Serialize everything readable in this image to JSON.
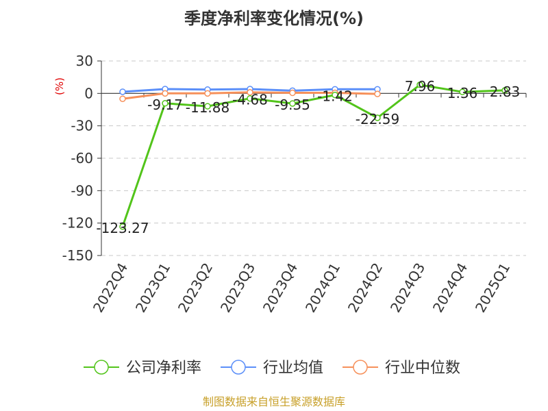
{
  "chart_data": {
    "type": "line",
    "title": "季度净利率变化情况(%)",
    "xlabel": "",
    "ylabel": "(%)",
    "categories": [
      "2022Q4",
      "2023Q1",
      "2023Q2",
      "2023Q3",
      "2023Q4",
      "2024Q1",
      "2024Q2",
      "2024Q3",
      "2024Q4",
      "2025Q1"
    ],
    "ylim": [
      -150,
      30
    ],
    "yticks": [
      30,
      0,
      -30,
      -60,
      -90,
      -120,
      -150
    ],
    "grid": true,
    "legend_position": "bottom",
    "series": [
      {
        "name": "公司净利率",
        "color": "#52c41a",
        "values": [
          -123.27,
          -9.17,
          -11.88,
          -4.68,
          -9.35,
          -1.42,
          -22.59,
          7.96,
          1.36,
          2.83
        ],
        "labels": [
          "-123.27",
          "-9.17",
          "-11.88",
          "-4.68",
          "-9.35",
          "-1.42",
          "-22.59",
          "7.96",
          "1.36",
          "2.83"
        ]
      },
      {
        "name": "行业均值",
        "color": "#5b8ff9",
        "values": [
          1.5,
          4.0,
          3.5,
          4.0,
          2.5,
          3.8,
          3.8,
          null,
          null,
          null
        ]
      },
      {
        "name": "行业中位数",
        "color": "#f6905a",
        "values": [
          -5.0,
          0.0,
          0.0,
          1.0,
          0.5,
          0.5,
          -0.5,
          null,
          null,
          null
        ]
      }
    ]
  },
  "source": "制图数据来自恒生聚源数据库"
}
